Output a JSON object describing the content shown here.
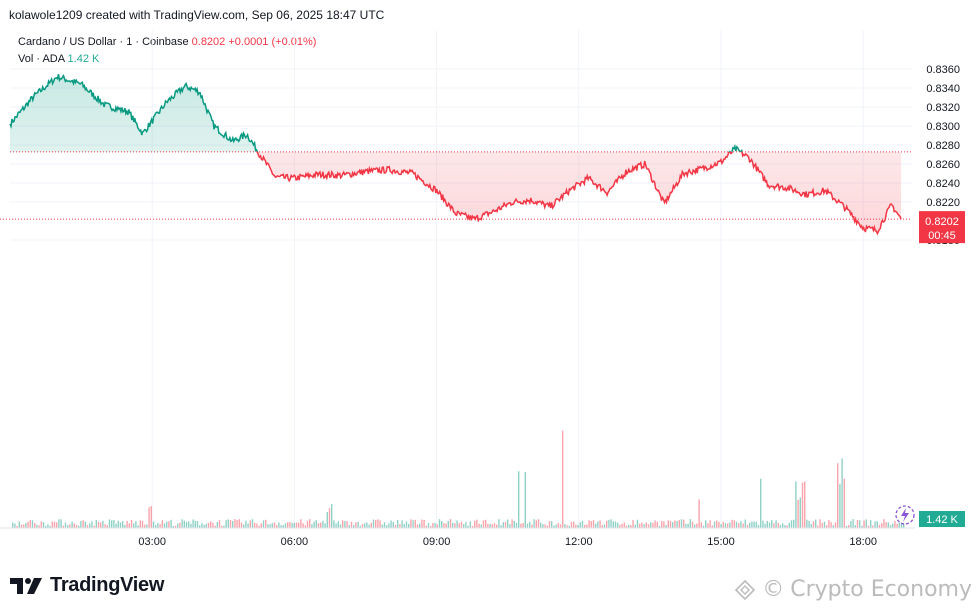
{
  "header": {
    "text": "kolawole1209 created with TradingView.com, Sep 06, 2025 18:47 UTC"
  },
  "legend": {
    "symbol": "Cardano / US Dollar · 1 · Coinbase",
    "price": "0.8202",
    "change": "+0.0001 (+0.01%)",
    "vol_label": "Vol · ADA",
    "vol_value": "1.42 K"
  },
  "price_badge": {
    "price": "0.8202",
    "countdown": "00:45",
    "color": "#f23645"
  },
  "vol_badge": {
    "value": "1.42 K",
    "color": "#22ab94"
  },
  "brand": {
    "name": "TradingView"
  },
  "watermark": {
    "text": "Crypto Economy"
  },
  "colors": {
    "up": "#089981",
    "down": "#f23645"
  },
  "chart_data": {
    "type": "line",
    "baseline": 0.82727,
    "ylim": [
      0.8168,
      0.8372
    ],
    "yticks": [
      "0.8360",
      "0.8340",
      "0.8320",
      "0.8300",
      "0.8280",
      "0.8260",
      "0.8240",
      "0.8220",
      "0.8180"
    ],
    "xticks": [
      "03:00",
      "06:00",
      "09:00",
      "12:00",
      "15:00",
      "18:00"
    ],
    "x_hours": [
      0.0,
      0.5,
      1.0,
      1.5,
      2.0,
      2.5,
      2.8,
      3.3,
      3.7,
      4.0,
      4.3,
      4.7,
      5.0,
      5.3,
      5.6,
      6.0,
      6.5,
      7.0,
      7.5,
      8.0,
      8.5,
      9.0,
      9.4,
      9.8,
      10.2,
      10.6,
      11.0,
      11.4,
      11.8,
      12.2,
      12.6,
      13.0,
      13.4,
      13.8,
      14.2,
      14.6,
      15.0,
      15.3,
      15.6,
      16.0,
      16.4,
      16.8,
      17.2,
      17.6,
      18.0,
      18.3,
      18.6,
      18.8
    ],
    "values": [
      0.8302,
      0.8331,
      0.8352,
      0.8344,
      0.8322,
      0.8315,
      0.8292,
      0.8325,
      0.8342,
      0.8336,
      0.83,
      0.8284,
      0.8291,
      0.8268,
      0.8246,
      0.8245,
      0.8249,
      0.8248,
      0.8252,
      0.8254,
      0.825,
      0.8232,
      0.8208,
      0.8202,
      0.821,
      0.822,
      0.8222,
      0.8215,
      0.8232,
      0.8245,
      0.823,
      0.8252,
      0.826,
      0.8218,
      0.825,
      0.8255,
      0.8262,
      0.8276,
      0.8266,
      0.8238,
      0.8235,
      0.8228,
      0.8232,
      0.8215,
      0.8193,
      0.819,
      0.8217,
      0.8202
    ]
  }
}
